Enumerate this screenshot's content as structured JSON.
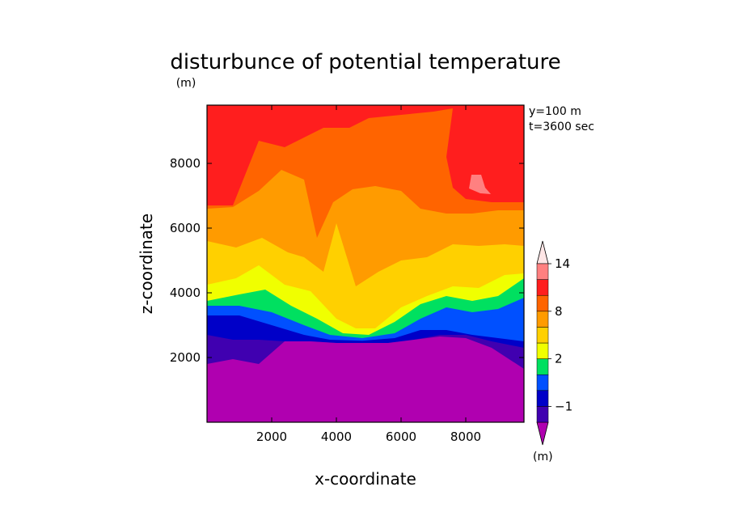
{
  "chart_data": {
    "type": "heatmap",
    "title": "disturbunce of potential temperature",
    "xlabel": "x-coordinate",
    "ylabel": "z-coordinate",
    "y_unit": "(m)",
    "x_ticks": [
      2000,
      4000,
      6000,
      8000
    ],
    "y_ticks": [
      2000,
      4000,
      6000,
      8000
    ],
    "xlim": [
      0,
      9800
    ],
    "ylim": [
      0,
      9800
    ],
    "annotations": [
      "y=100 m",
      "t=3600 sec"
    ],
    "colorbar": {
      "unit": "(m)",
      "levels": [
        -2,
        -1,
        0,
        1,
        2,
        4,
        6,
        8,
        10,
        12,
        14,
        16
      ],
      "labels": [
        "14",
        "8",
        "2",
        "-1"
      ],
      "colors": [
        "#b000b0",
        "#4000b0",
        "#0000c8",
        "#0050ff",
        "#00e060",
        "#f0ff00",
        "#ffd000",
        "#ff9b00",
        "#ff6400",
        "#ff1e1e",
        "#ff8080",
        "#ffb8b8"
      ]
    },
    "bands": [
      {
        "level": "-2 to -1",
        "color": "#b000b0",
        "boundary_top": [
          [
            0,
            1800
          ],
          [
            800,
            1950
          ],
          [
            1600,
            1800
          ],
          [
            2400,
            2500
          ],
          [
            3200,
            2500
          ],
          [
            4000,
            2450
          ],
          [
            4800,
            2450
          ],
          [
            5600,
            2450
          ],
          [
            6400,
            2550
          ],
          [
            7200,
            2650
          ],
          [
            8000,
            2600
          ],
          [
            8800,
            2300
          ],
          [
            9800,
            1650
          ]
        ]
      },
      {
        "level": "-1 to 0",
        "color": "#4000b0",
        "boundary_top": [
          [
            0,
            2700
          ],
          [
            800,
            2550
          ],
          [
            1600,
            2550
          ],
          [
            2400,
            2500
          ],
          [
            3200,
            2500
          ],
          [
            4000,
            2450
          ],
          [
            4800,
            2450
          ],
          [
            5600,
            2450
          ],
          [
            6400,
            2550
          ],
          [
            7200,
            2700
          ],
          [
            8000,
            2700
          ],
          [
            8800,
            2500
          ],
          [
            9800,
            2300
          ]
        ]
      },
      {
        "level": "0 to 1",
        "color": "#0000c8",
        "boundary_top": [
          [
            0,
            3300
          ],
          [
            1000,
            3300
          ],
          [
            2000,
            3000
          ],
          [
            3000,
            2700
          ],
          [
            3800,
            2550
          ],
          [
            4800,
            2520
          ],
          [
            5800,
            2600
          ],
          [
            6600,
            2850
          ],
          [
            7400,
            2850
          ],
          [
            8200,
            2700
          ],
          [
            9000,
            2600
          ],
          [
            9800,
            2500
          ]
        ]
      },
      {
        "level": "1 to 2",
        "color": "#0050ff",
        "boundary_top": [
          [
            0,
            3600
          ],
          [
            1000,
            3600
          ],
          [
            2000,
            3400
          ],
          [
            3000,
            3000
          ],
          [
            3800,
            2700
          ],
          [
            4800,
            2600
          ],
          [
            5800,
            2750
          ],
          [
            6600,
            3200
          ],
          [
            7400,
            3550
          ],
          [
            8200,
            3400
          ],
          [
            9000,
            3500
          ],
          [
            9800,
            3850
          ]
        ]
      },
      {
        "level": "2 to 4",
        "color": "#00e060",
        "boundary_top": [
          [
            0,
            3750
          ],
          [
            1000,
            3950
          ],
          [
            1800,
            4100
          ],
          [
            2600,
            3600
          ],
          [
            3400,
            3200
          ],
          [
            4200,
            2750
          ],
          [
            5000,
            2700
          ],
          [
            5800,
            3100
          ],
          [
            6600,
            3650
          ],
          [
            7400,
            3900
          ],
          [
            8200,
            3750
          ],
          [
            9000,
            3900
          ],
          [
            9800,
            4450
          ]
        ]
      },
      {
        "level": "4 to 6",
        "color": "#f0ff00",
        "boundary_top": [
          [
            0,
            4250
          ],
          [
            900,
            4450
          ],
          [
            1600,
            4850
          ],
          [
            2400,
            4250
          ],
          [
            3200,
            4050
          ],
          [
            4000,
            3200
          ],
          [
            4600,
            2900
          ],
          [
            5200,
            2900
          ],
          [
            6000,
            3550
          ],
          [
            6800,
            3900
          ],
          [
            7600,
            4200
          ],
          [
            8400,
            4150
          ],
          [
            9200,
            4550
          ],
          [
            9800,
            4600
          ]
        ]
      },
      {
        "level": "6 to 8",
        "color": "#ffd000",
        "boundary_top": [
          [
            0,
            5600
          ],
          [
            900,
            5400
          ],
          [
            1700,
            5700
          ],
          [
            2500,
            5250
          ],
          [
            3000,
            5100
          ],
          [
            3600,
            4650
          ],
          [
            4000,
            6150
          ],
          [
            4600,
            4200
          ],
          [
            5300,
            4650
          ],
          [
            6000,
            5000
          ],
          [
            6800,
            5100
          ],
          [
            7600,
            5500
          ],
          [
            8400,
            5450
          ],
          [
            9200,
            5500
          ],
          [
            9800,
            5450
          ]
        ]
      },
      {
        "level": "8 to 10",
        "color": "#ff9b00",
        "boundary_top": [
          [
            0,
            6600
          ],
          [
            800,
            6650
          ],
          [
            1600,
            7150
          ],
          [
            2300,
            7800
          ],
          [
            3000,
            7500
          ],
          [
            3400,
            5700
          ],
          [
            3900,
            6800
          ],
          [
            4500,
            7200
          ],
          [
            5200,
            7300
          ],
          [
            6000,
            7150
          ],
          [
            6600,
            6600
          ],
          [
            7400,
            6450
          ],
          [
            8200,
            6450
          ],
          [
            9000,
            6550
          ],
          [
            9800,
            6550
          ]
        ]
      },
      {
        "level": "10 to 12",
        "color": "#ff6400",
        "boundary_top": [
          [
            0,
            6700
          ],
          [
            800,
            6700
          ],
          [
            1600,
            8700
          ],
          [
            2400,
            8500
          ],
          [
            3000,
            8800
          ],
          [
            3600,
            9100
          ],
          [
            4400,
            9100
          ],
          [
            5000,
            9400
          ],
          [
            6000,
            9500
          ],
          [
            7000,
            9600
          ],
          [
            7600,
            9700
          ],
          [
            7400,
            8200
          ],
          [
            7600,
            7250
          ],
          [
            8000,
            6900
          ],
          [
            8800,
            6800
          ],
          [
            9800,
            6800
          ]
        ]
      },
      {
        "level": "12 to 14",
        "color": "#ff1e1e",
        "boundary_top": [
          [
            0,
            9800
          ],
          [
            9800,
            9800
          ]
        ]
      }
    ],
    "patches": [
      {
        "level": "14 to 16",
        "color": "#ff8080",
        "center": [
          8400,
          7300
        ]
      }
    ]
  }
}
